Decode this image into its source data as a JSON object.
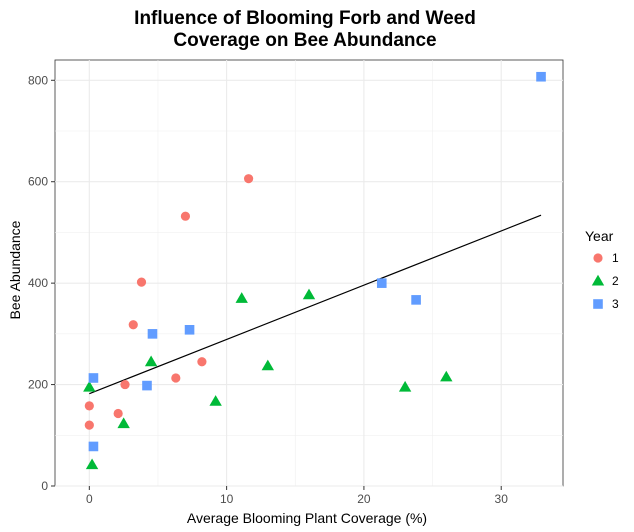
{
  "chart_data": {
    "type": "scatter",
    "title_lines": [
      "Influence of Blooming Forb and Weed",
      "Coverage on Bee Abundance"
    ],
    "xlabel": "Average Blooming Plant Coverage (%)",
    "ylabel": "Bee Abundance",
    "xlim": [
      -2.5,
      34.5
    ],
    "ylim": [
      0,
      840
    ],
    "x_ticks": [
      0,
      10,
      20,
      30
    ],
    "x_tick_labels": [
      "0",
      "10",
      "20",
      "30"
    ],
    "y_ticks": [
      0,
      200,
      400,
      600,
      800
    ],
    "y_tick_labels": [
      "0",
      "200",
      "400",
      "600",
      "800"
    ],
    "grid": true,
    "legend": {
      "title": "Year",
      "placement": "right"
    },
    "series": [
      {
        "name": "1",
        "shape": "circle",
        "color": "#F8766D",
        "points": [
          [
            0,
            158
          ],
          [
            0,
            120
          ],
          [
            2.1,
            143
          ],
          [
            2.6,
            200
          ],
          [
            3.2,
            318
          ],
          [
            3.8,
            402
          ],
          [
            6.3,
            213
          ],
          [
            7.0,
            532
          ],
          [
            8.2,
            245
          ],
          [
            11.6,
            606
          ]
        ]
      },
      {
        "name": "2",
        "shape": "triangle",
        "color": "#00BA38",
        "points": [
          [
            0,
            195
          ],
          [
            0.2,
            42
          ],
          [
            2.5,
            123
          ],
          [
            4.5,
            245
          ],
          [
            9.2,
            167
          ],
          [
            11.1,
            370
          ],
          [
            13.0,
            237
          ],
          [
            16.0,
            377
          ],
          [
            23.0,
            195
          ],
          [
            26.0,
            215
          ]
        ]
      },
      {
        "name": "3",
        "shape": "square",
        "color": "#619CFF",
        "points": [
          [
            0.3,
            213
          ],
          [
            0.3,
            78
          ],
          [
            4.2,
            198
          ],
          [
            4.6,
            300
          ],
          [
            7.3,
            308
          ],
          [
            21.3,
            400
          ],
          [
            23.8,
            367
          ],
          [
            32.9,
            807
          ]
        ]
      }
    ],
    "trendline": {
      "color": "#000000",
      "x": [
        0,
        32.9
      ],
      "y": [
        182,
        534
      ]
    }
  }
}
